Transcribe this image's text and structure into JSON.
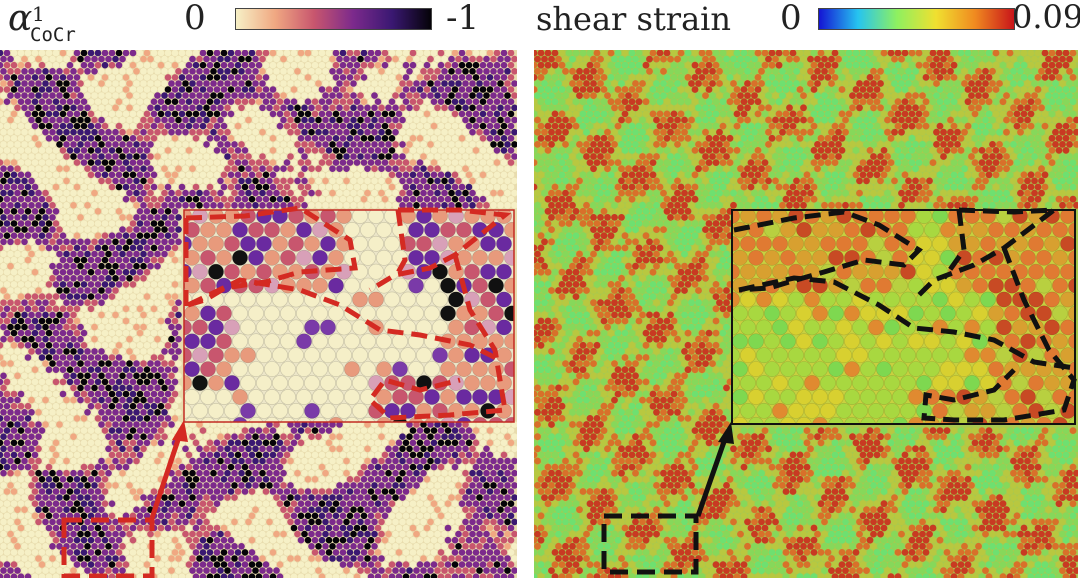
{
  "left": {
    "symbol": "α",
    "superscript": "1",
    "subscript": "CoCr",
    "cbar_min_label": "0",
    "cbar_max_label": "-1",
    "cbar_colors": [
      "#f6f0c6",
      "#f0a882",
      "#c8566e",
      "#7c2a8c",
      "#3a1872",
      "#050308"
    ],
    "outline_color": "#d42a22"
  },
  "right": {
    "title": "shear strain",
    "cbar_min_label": "0",
    "cbar_max_label": "0.09",
    "cbar_colors": [
      "#1414d4",
      "#26c4f0",
      "#8ef060",
      "#f0e030",
      "#f08a20",
      "#c8141a"
    ],
    "outline_color": "#111111"
  }
}
